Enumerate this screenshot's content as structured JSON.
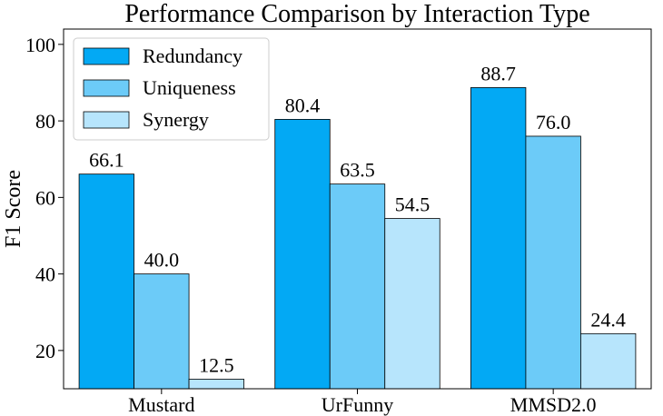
{
  "chart_data": {
    "type": "bar",
    "title": "Performance Comparison by Interaction Type",
    "xlabel": "",
    "ylabel": "F1 Score",
    "categories": [
      "Mustard",
      "UrFunny",
      "MMSD2.0"
    ],
    "series": [
      {
        "name": "Redundancy",
        "values": [
          66.1,
          80.4,
          88.7
        ],
        "color": "#03a9f4"
      },
      {
        "name": "Uniqueness",
        "values": [
          40.0,
          63.5,
          76.0
        ],
        "color": "#6ccbf8"
      },
      {
        "name": "Synergy",
        "values": [
          12.5,
          54.5,
          24.4
        ],
        "color": "#b7e5fc"
      }
    ],
    "ylim": [
      10,
      104
    ],
    "yticks": [
      20,
      40,
      60,
      80,
      100
    ],
    "grid": false,
    "legend_position": "top-left",
    "data_labels": true,
    "value_format_decimals": 1
  }
}
